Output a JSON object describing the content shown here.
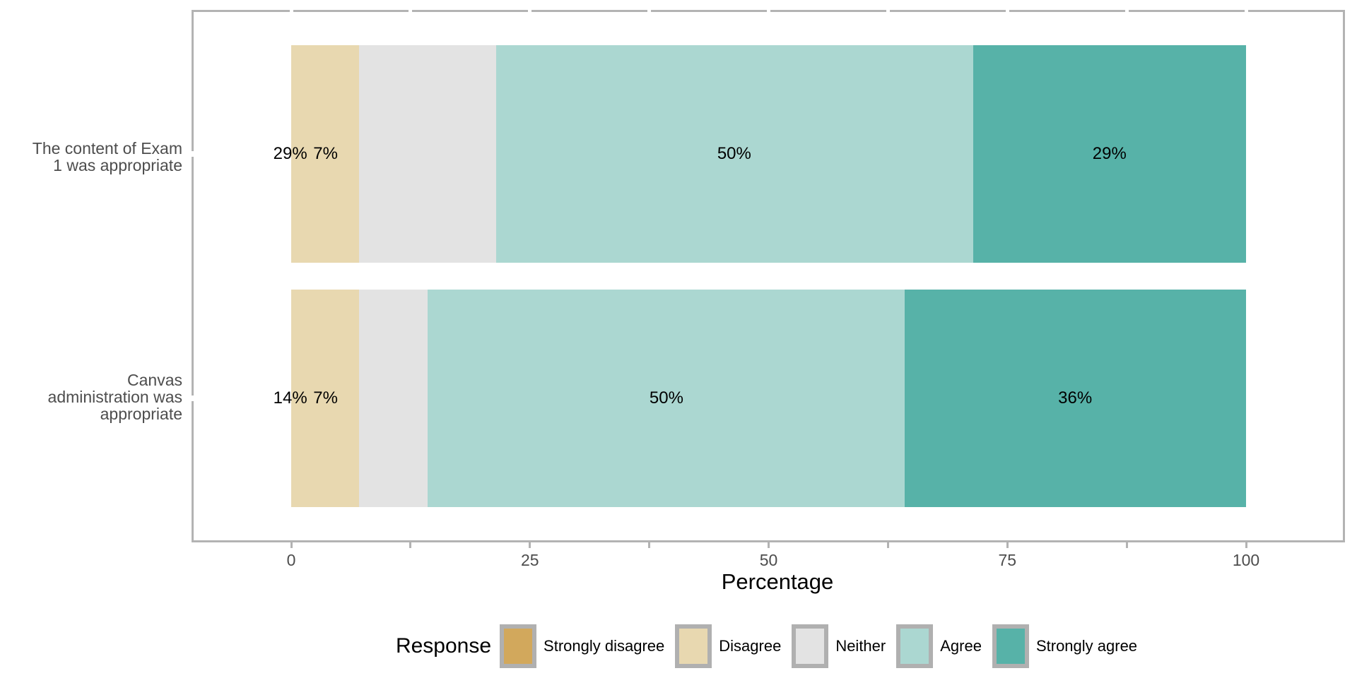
{
  "chart_data": {
    "type": "bar",
    "orientation": "horizontal",
    "stacked": true,
    "xlabel": "Percentage",
    "xlim": [
      0,
      100
    ],
    "x_ticks_labeled": [
      0,
      25,
      50,
      75,
      100
    ],
    "x_ticks_minor": [
      12.5,
      37.5,
      62.5,
      87.5
    ],
    "grid": false,
    "legend_title": "Response",
    "legend_position": "bottom",
    "categories": [
      {
        "label": "The content of Exam 1 was appropriate",
        "lines": [
          "The content of Exam",
          "1 was appropriate"
        ]
      },
      {
        "label": "Canvas administration was appropriate",
        "lines": [
          "Canvas",
          "administration was",
          "appropriate"
        ]
      }
    ],
    "series": [
      {
        "name": "Strongly disagree",
        "color": "#d2a85c",
        "values": [
          0,
          0
        ]
      },
      {
        "name": "Disagree",
        "color": "#e8d8b0",
        "values": [
          7.14,
          7.14
        ]
      },
      {
        "name": "Neither",
        "color": "#e3e3e3",
        "values": [
          14.29,
          7.14
        ]
      },
      {
        "name": "Agree",
        "color": "#abd7d1",
        "values": [
          50,
          50
        ]
      },
      {
        "name": "Strongly agree",
        "color": "#57b2a8",
        "values": [
          28.57,
          35.71
        ]
      }
    ],
    "bar_labels": [
      [
        {
          "text": "29%",
          "at": -0.1
        },
        {
          "text": "7%",
          "at": 3.6
        },
        {
          "text": "50%",
          "at": 46.4
        },
        {
          "text": "29%",
          "at": 85.7
        }
      ],
      [
        {
          "text": "14%",
          "at": -0.1
        },
        {
          "text": "7%",
          "at": 3.6
        },
        {
          "text": "50%",
          "at": 39.3
        },
        {
          "text": "36%",
          "at": 82.1
        }
      ]
    ]
  },
  "colors": {
    "panel_border": "#b3b3b3",
    "axis_text": "#4d4d4d",
    "bar_label_text": "#000000",
    "legend_key_border": "#b0b0b0",
    "background": "#ffffff"
  }
}
